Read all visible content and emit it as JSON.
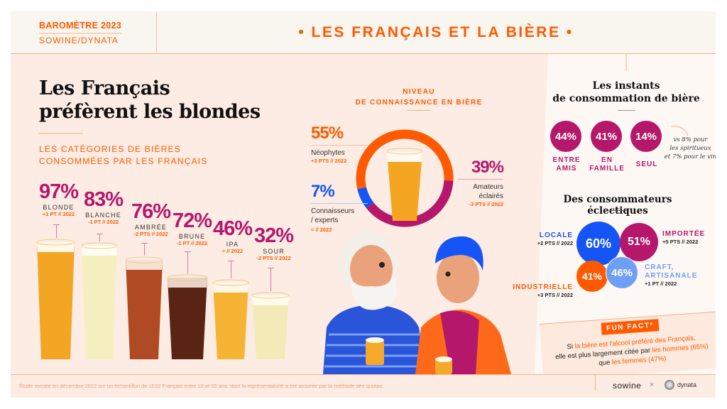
{
  "header": {
    "barometre": "BAROMÈTRE 2023",
    "source": "SOWINE/DYNATA",
    "title": "•  LES FRANÇAIS ET LA BIÈRE  •"
  },
  "left": {
    "title_line1": "Les Français",
    "title_line2": "préfèrent les blondes",
    "subtitle_line1": "LES CATÉGORIES DE BIÈRES",
    "subtitle_line2": "CONSOMMÉES PAR LES FRANÇAIS",
    "beers": [
      {
        "pct": "97%",
        "label": "BLONDE",
        "variation": "+1 PT // 2022",
        "value": 97
      },
      {
        "pct": "83%",
        "label": "BLANCHE",
        "variation": "-1 PT // 2022",
        "value": 83
      },
      {
        "pct": "76%",
        "label": "AMBRÉE",
        "variation": "-2 PTS // 2022",
        "value": 76
      },
      {
        "pct": "72%",
        "label": "BRUNE",
        "variation": "-1 PT // 2022",
        "value": 72
      },
      {
        "pct": "46%",
        "label": "IPA",
        "variation": "= // 2022",
        "value": 46
      },
      {
        "pct": "32%",
        "label": "SOUR",
        "variation": "-2 PTS // 2022",
        "value": 32
      }
    ]
  },
  "knowledge": {
    "title_line1": "NIVEAU",
    "title_line2": "DE CONNAISSANCE EN BIÈRE",
    "segments": [
      {
        "pct": "55%",
        "value": 55,
        "label": "Néophytes",
        "variation": "+3 PTS // 2022",
        "color": "#ff5a00"
      },
      {
        "pct": "39%",
        "value": 39,
        "label_line1": "Amateurs",
        "label_line2": "éclairés",
        "variation": "-3 PTS // 2022",
        "color": "#b5176b"
      },
      {
        "pct": "7%",
        "value": 7,
        "label_line1": "Connaisseurs",
        "label_line2": "/ experts",
        "variation": "= // 2022",
        "color": "#1655f5"
      }
    ]
  },
  "moments": {
    "title_line1": "Les instants",
    "title_line2": "de consommation de bière",
    "items": [
      {
        "pct": "44%",
        "label_line1": "ENTRE",
        "label_line2": "AMIS"
      },
      {
        "pct": "41%",
        "label_line1": "EN",
        "label_line2": "FAMILLE"
      },
      {
        "pct": "14%",
        "label_line1": "SEUL",
        "label_line2": ""
      }
    ],
    "note_line1": "vs 8% pour",
    "note_line2": "les spiritueux",
    "note_line3": "et 7% pour le vin"
  },
  "eclectic": {
    "title": "Des consommateurs éclectiques",
    "items": [
      {
        "pct": "60%",
        "label": "LOCALE",
        "variation": "+2 PTS // 2022",
        "color": "#1655f5"
      },
      {
        "pct": "51%",
        "label": "IMPORTÉE",
        "variation": "+5 PTS // 2022",
        "color": "#b5176b"
      },
      {
        "pct": "46%",
        "label_line1": "CRAFT,",
        "label_line2": "ARTISANALE",
        "variation": "+1 PT // 2022",
        "color": "#6f9ef5"
      },
      {
        "pct": "41%",
        "label": "INDUSTRIELLE",
        "variation": "+3 PTS // 2022",
        "color": "#ff5a00"
      }
    ]
  },
  "fun_fact": {
    "badge": "FUN FACT*",
    "t1": "Si ",
    "t2": "la bière est l'alcool préféré des Français,",
    "t3": "elle est plus largement citée par ",
    "t4": "les hommes (65%)",
    "t5": "que ",
    "t6": "les femmes (47%)"
  },
  "footer": {
    "note": "Étude menée en décembre 2022 sur un échantillon de 1032 Français entre 18 et 65 ans, dont la représentativité a été assurée par la méthode des quotas.",
    "logo_sowine": "sowine",
    "times": "×",
    "logo_dynata": "dynata"
  },
  "colors": {
    "orange": "#ff5a00",
    "magenta": "#b5176b",
    "blue": "#1655f5",
    "light_blue": "#6f9ef5",
    "peach": "#fdece3"
  }
}
